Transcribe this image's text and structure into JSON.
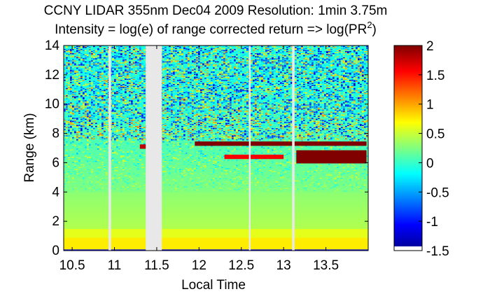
{
  "chart_data": {
    "type": "heatmap",
    "title": "CCNY LIDAR 355nm Dec04 2009 Resolution: 1min 3.75m",
    "subtitle_prefix": "Intensity = log(e) of range corrected return => log(PR",
    "subtitle_sup": "2",
    "subtitle_suffix": ")",
    "xlabel": "Local Time",
    "ylabel": "Range (km)",
    "xlim": [
      10.4,
      14.0
    ],
    "ylim": [
      0,
      14
    ],
    "xticks": [
      {
        "v": 10.5,
        "label": "10.5"
      },
      {
        "v": 11.0,
        "label": "11"
      },
      {
        "v": 11.5,
        "label": "11.5"
      },
      {
        "v": 12.0,
        "label": "12"
      },
      {
        "v": 12.5,
        "label": "12.5"
      },
      {
        "v": 13.0,
        "label": "13"
      },
      {
        "v": 13.5,
        "label": "13.5"
      }
    ],
    "yticks": [
      {
        "v": 0,
        "label": "0"
      },
      {
        "v": 2,
        "label": "2"
      },
      {
        "v": 4,
        "label": "4"
      },
      {
        "v": 6,
        "label": "6"
      },
      {
        "v": 8,
        "label": "8"
      },
      {
        "v": 10,
        "label": "10"
      },
      {
        "v": 12,
        "label": "12"
      },
      {
        "v": 14,
        "label": "14"
      }
    ],
    "colorbar": {
      "min": -1.5,
      "max": 2,
      "ticks": [
        {
          "v": 2,
          "label": "2"
        },
        {
          "v": 1.5,
          "label": "1.5"
        },
        {
          "v": 1,
          "label": "1"
        },
        {
          "v": 0.5,
          "label": "0.5"
        },
        {
          "v": 0,
          "label": "0"
        },
        {
          "v": -0.5,
          "label": "-0.5"
        },
        {
          "v": -1,
          "label": "-1"
        },
        {
          "v": -1.5,
          "label": "-1.5"
        }
      ]
    },
    "data_gaps_time": [
      [
        10.93,
        10.96
      ],
      [
        11.37,
        11.56
      ],
      [
        12.59,
        12.61
      ],
      [
        13.1,
        13.13
      ]
    ],
    "layers": [
      {
        "t_start": 11.3,
        "t_end": 11.45,
        "range_km": 7.1,
        "intensity": 1.8
      },
      {
        "t_start": 11.95,
        "t_end": 13.98,
        "range_km": 7.3,
        "intensity": 2.0
      },
      {
        "t_start": 12.3,
        "t_end": 13.0,
        "range_km": 6.4,
        "intensity": 1.6
      },
      {
        "t_start": 13.15,
        "t_end": 13.98,
        "range_km": 6.4,
        "intensity": 2.0
      }
    ],
    "boundary_layer_top_km": 1.5,
    "colormap": "jet"
  }
}
